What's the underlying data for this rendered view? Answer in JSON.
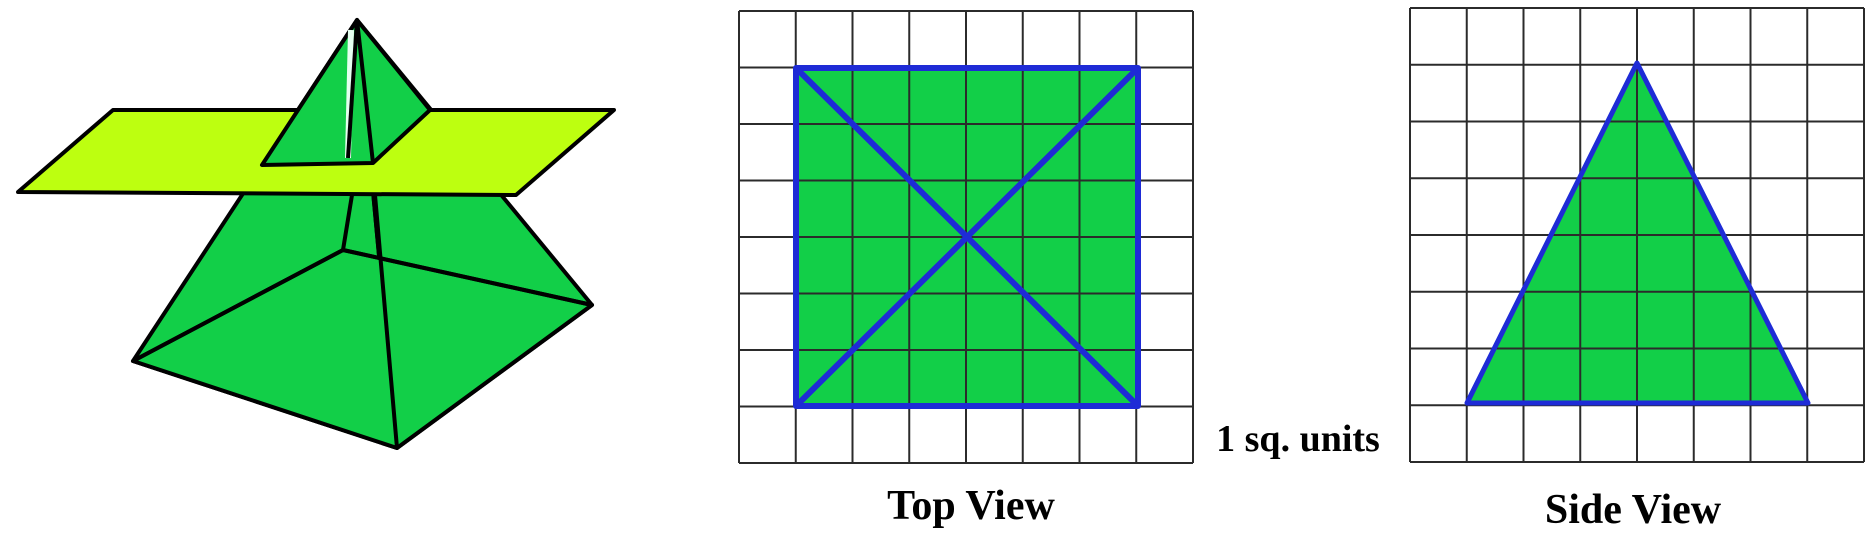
{
  "labels": {
    "unit": "1 sq. units",
    "top_view": "Top View",
    "side_view": "Side View"
  },
  "colors": {
    "face_green": "#12cf48",
    "plane_yellow": "#bdff10",
    "outline_blue": "#1e2bd6",
    "edge_black": "#000000",
    "grid_line": "#2b2b2b"
  },
  "grids": {
    "top_view": {
      "columns": 8,
      "rows": 8,
      "square_size_units": 1,
      "base_side_units": 6
    },
    "side_view": {
      "columns": 8,
      "rows": 8,
      "square_size_units": 1,
      "base_width_units": 6,
      "height_units": 6
    }
  }
}
